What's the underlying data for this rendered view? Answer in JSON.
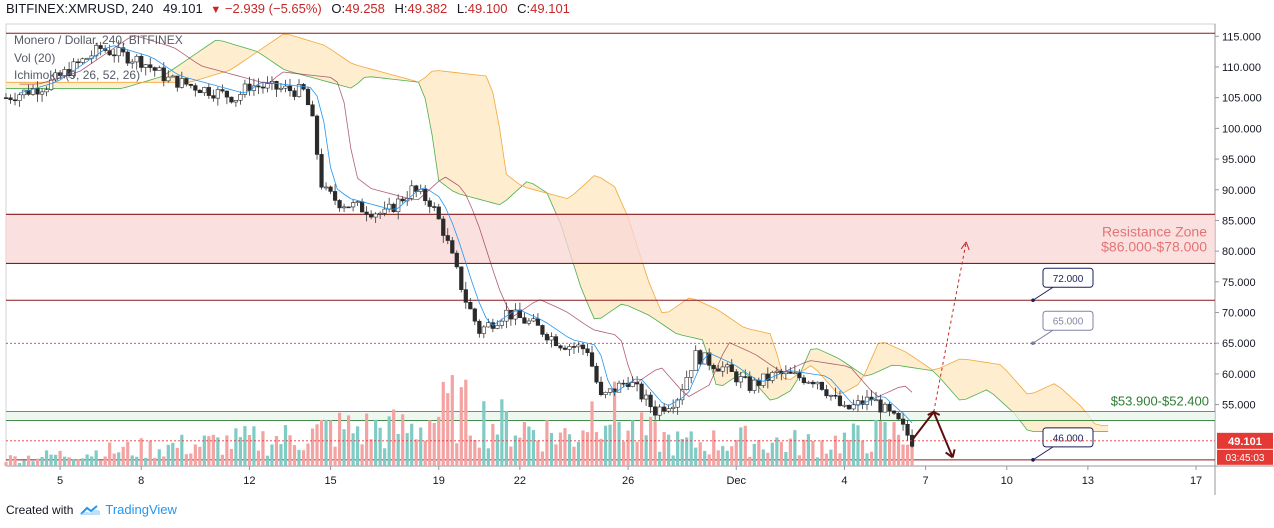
{
  "header": {
    "symbol": "BITFINEX:XMRUSD, 240",
    "last": "49.101",
    "change": "−2.939 (−5.65%)",
    "open_label": "O:",
    "open": "49.258",
    "high_label": "H:",
    "high": "49.382",
    "low_label": "L:",
    "low": "49.100",
    "close_label": "C:",
    "close": "49.101"
  },
  "legend": {
    "line1": "Monero / Dollar, 240, BITFINEX",
    "line2": "Vol (20)",
    "line3": "Ichimoku (9, 26, 52, 26)"
  },
  "footer": {
    "created_with": "Created with",
    "brand": "TradingView"
  },
  "colors": {
    "up": "#26a69a",
    "down": "#ef5350",
    "resistance": "#8b1a1a",
    "zone_fill": "#f8d7d5",
    "cloud": "#fde3b3",
    "support": "#2e7d32",
    "price_tag": "#e53935",
    "callout": "#1a1f5a"
  },
  "chart_data": {
    "type": "candlestick",
    "y_axis": {
      "min": 45,
      "max": 117,
      "ticks": [
        "115.000",
        "110.000",
        "105.000",
        "100.000",
        "95.000",
        "90.000",
        "85.000",
        "80.000",
        "75.000",
        "70.000",
        "65.000",
        "60.000",
        "55.000"
      ]
    },
    "x_axis": {
      "start_day": 3,
      "end_day": 17,
      "ticks": [
        {
          "label": "5",
          "day": 5
        },
        {
          "label": "8",
          "day": 8
        },
        {
          "label": "12",
          "day": 12
        },
        {
          "label": "15",
          "day": 15
        },
        {
          "label": "19",
          "day": 19
        },
        {
          "label": "22",
          "day": 22
        },
        {
          "label": "26",
          "day": 26
        },
        {
          "label": "Dec",
          "day": 30
        },
        {
          "label": "4",
          "day": 34
        },
        {
          "label": "7",
          "day": 37
        },
        {
          "label": "10",
          "day": 40
        },
        {
          "label": "13",
          "day": 43
        },
        {
          "label": "17",
          "day": 47
        }
      ]
    },
    "price_keypoints": [
      [
        3.0,
        105
      ],
      [
        4.5,
        107
      ],
      [
        5.5,
        110
      ],
      [
        6.5,
        113
      ],
      [
        8.0,
        111
      ],
      [
        9.0,
        108
      ],
      [
        11.5,
        105
      ],
      [
        12.0,
        107
      ],
      [
        14.0,
        106
      ],
      [
        14.3,
        102
      ],
      [
        14.7,
        90
      ],
      [
        15.3,
        88
      ],
      [
        17.0,
        86
      ],
      [
        18.0,
        90
      ],
      [
        18.7,
        88
      ],
      [
        19.2,
        83
      ],
      [
        20.0,
        72
      ],
      [
        20.5,
        67
      ],
      [
        21.5,
        70
      ],
      [
        22.5,
        68
      ],
      [
        23.5,
        65
      ],
      [
        24.5,
        64
      ],
      [
        25.0,
        56
      ],
      [
        26.0,
        59
      ],
      [
        27.0,
        54
      ],
      [
        27.8,
        56
      ],
      [
        28.5,
        63
      ],
      [
        29.5,
        61
      ],
      [
        30.5,
        58
      ],
      [
        31.5,
        60
      ],
      [
        33.0,
        59
      ],
      [
        34.0,
        54
      ],
      [
        35.0,
        56
      ],
      [
        36.0,
        52
      ],
      [
        36.5,
        49.1
      ]
    ],
    "resistance_zone": {
      "label": "Resistance Zone",
      "range_label": "$86.000-$78.000",
      "high": 86.0,
      "low": 78.0
    },
    "levels": [
      {
        "price": 115.5,
        "style": "solid"
      },
      {
        "price": 72.0,
        "style": "solid",
        "tag": "72.000"
      },
      {
        "price": 65.0,
        "style": "dotted",
        "tag": "65.000"
      },
      {
        "price": 46.0,
        "style": "solid",
        "tag": "46.000"
      }
    ],
    "support_zone": {
      "label": "$53.900-$52.400",
      "high": 53.9,
      "low": 52.4
    },
    "current_price": {
      "value": "49.101",
      "countdown": "03:45:03",
      "price": 49.101
    },
    "projection": {
      "start_day": 37.3,
      "start_price": 53.8,
      "end_day": 38.5,
      "end_price": 81.5
    },
    "volume_keypoints": [
      [
        3,
        0.1
      ],
      [
        14,
        0.4
      ],
      [
        15,
        0.5
      ],
      [
        18,
        0.5
      ],
      [
        19.5,
        0.8
      ],
      [
        21,
        0.6
      ],
      [
        24,
        0.4
      ],
      [
        25,
        0.95
      ],
      [
        26,
        0.5
      ],
      [
        28,
        0.3
      ],
      [
        30,
        0.35
      ],
      [
        33,
        0.3
      ],
      [
        36,
        0.45
      ]
    ]
  }
}
